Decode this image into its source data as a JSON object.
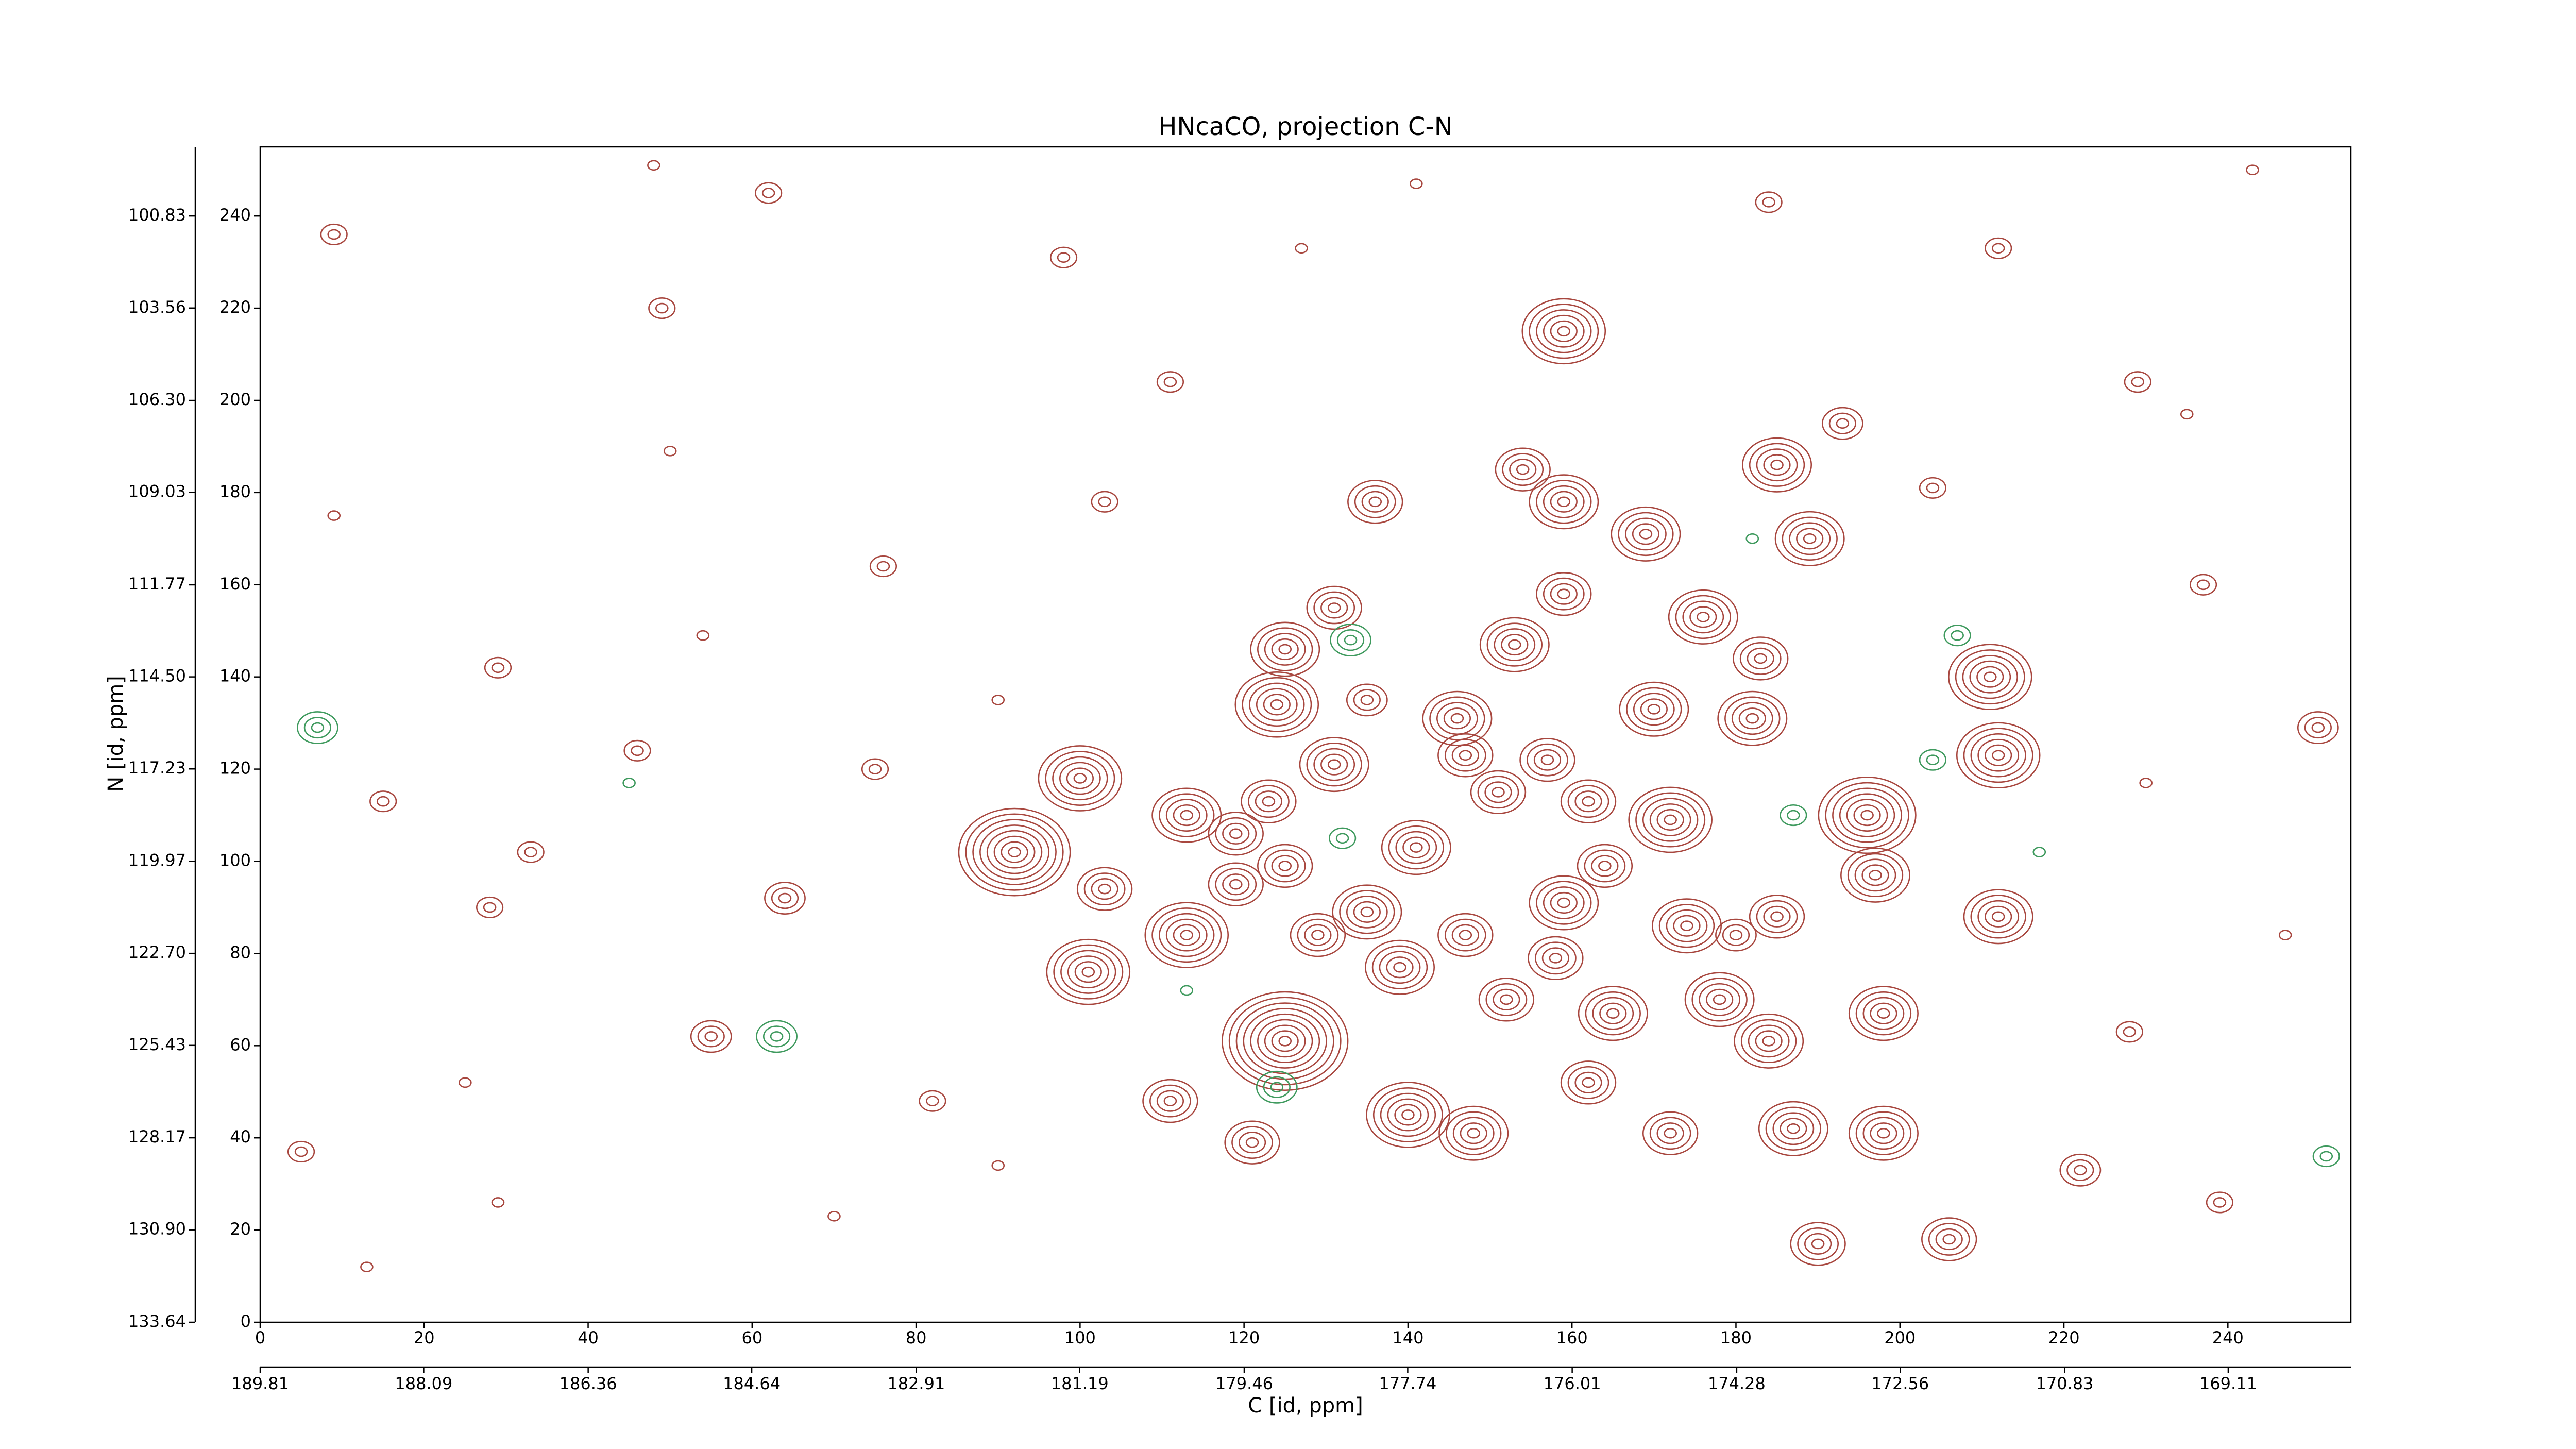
{
  "chart_data": {
    "type": "contour",
    "title": "HNcaCO, projection C-N",
    "xlabel": "C [id, ppm]",
    "ylabel": "N [id, ppm]",
    "xlim": [
      0,
      255
    ],
    "ylim": [
      0,
      255
    ],
    "xticks": [
      0,
      20,
      40,
      60,
      80,
      100,
      120,
      140,
      160,
      180,
      200,
      220,
      240
    ],
    "yticks": [
      0,
      20,
      40,
      60,
      80,
      100,
      120,
      140,
      160,
      180,
      200,
      220,
      240
    ],
    "x2lim": [
      189.81,
      167.82
    ],
    "x2ticks": [
      189.81,
      188.09,
      186.36,
      184.64,
      182.91,
      181.19,
      179.46,
      177.74,
      176.01,
      174.28,
      172.56,
      170.83,
      169.11
    ],
    "y2lim": [
      133.64,
      98.78
    ],
    "y2ticks": [
      133.64,
      {
        "value": 130.9,
        "label": "130.90"
      },
      128.17,
      125.43,
      {
        "value": 122.7,
        "label": "122.70"
      },
      119.97,
      117.23,
      {
        "value": 114.5,
        "label": "114.50"
      },
      111.77,
      109.03,
      {
        "value": 106.3,
        "label": "106.30"
      },
      103.56,
      100.83
    ],
    "peaks": [
      {
        "color": "#a8473f",
        "x": [
          92,
          100,
          101,
          103,
          113,
          113,
          125,
          124,
          125,
          131,
          131,
          136,
          135,
          139,
          140,
          141,
          146,
          148,
          153,
          154,
          159,
          159,
          159,
          159,
          165,
          169,
          170,
          172,
          176,
          182,
          183,
          184,
          185,
          187,
          189,
          190,
          196,
          197,
          198,
          198,
          206,
          211,
          212,
          212,
          222,
          251,
          193,
          178,
          174,
          185,
          172,
          162,
          152,
          147,
          151,
          157,
          162,
          164,
          158,
          129,
          125,
          119,
          119,
          123,
          111,
          121,
          147,
          135,
          180,
          5,
          62,
          49,
          28,
          64,
          75,
          55,
          237,
          229,
          243,
          235,
          204,
          98,
          48,
          9,
          29,
          15,
          33,
          82,
          90,
          29,
          13,
          70,
          76,
          50,
          111,
          127,
          141,
          212,
          184,
          228,
          239,
          247,
          230,
          25,
          46,
          54,
          90,
          103,
          9
        ],
        "y": [
          102,
          118,
          76,
          94,
          84,
          110,
          61,
          134,
          146,
          121,
          155,
          178,
          89,
          77,
          45,
          103,
          131,
          41,
          147,
          185,
          215,
          178,
          158,
          91,
          67,
          171,
          133,
          109,
          153,
          131,
          144,
          61,
          186,
          42,
          170,
          17,
          110,
          97,
          67,
          41,
          18,
          140,
          123,
          88,
          33,
          129,
          195,
          70,
          86,
          88,
          41,
          52,
          70,
          84,
          115,
          122,
          113,
          99,
          79,
          84,
          99,
          106,
          95,
          113,
          48,
          39,
          123,
          135,
          84,
          37,
          245,
          220,
          90,
          92,
          120,
          62,
          160,
          204,
          250,
          197,
          181,
          231,
          251,
          236,
          142,
          113,
          102,
          48,
          34,
          26,
          12,
          23,
          164,
          189,
          204,
          233,
          247,
          233,
          243,
          63,
          26,
          84,
          117,
          52,
          124,
          149,
          135,
          178,
          175
        ],
        "levels": [
          8,
          6,
          6,
          4,
          6,
          5,
          9,
          6,
          5,
          5,
          4,
          4,
          5,
          5,
          6,
          5,
          5,
          5,
          5,
          4,
          6,
          5,
          4,
          5,
          5,
          5,
          5,
          6,
          5,
          5,
          4,
          5,
          5,
          5,
          5,
          4,
          7,
          5,
          5,
          5,
          4,
          6,
          6,
          5,
          3,
          3,
          3,
          5,
          5,
          4,
          4,
          4,
          4,
          4,
          4,
          4,
          4,
          4,
          4,
          4,
          4,
          4,
          4,
          4,
          4,
          4,
          4,
          3,
          3,
          2,
          2,
          2,
          2,
          3,
          2,
          3,
          2,
          2,
          1,
          1,
          2,
          2,
          1,
          2,
          2,
          2,
          2,
          2,
          1,
          1,
          1,
          1,
          2,
          1,
          2,
          1,
          1,
          2,
          2,
          2,
          2,
          1,
          1,
          1,
          2,
          1,
          1,
          2,
          1
        ]
      },
      {
        "color": "#3f9a5e",
        "x": [
          7,
          63,
          124,
          133,
          207,
          204,
          187,
          252,
          217,
          132,
          113,
          45,
          182
        ],
        "y": [
          129,
          62,
          51,
          148,
          149,
          122,
          110,
          36,
          102,
          105,
          72,
          117,
          170
        ],
        "levels": [
          3,
          3,
          3,
          3,
          2,
          2,
          2,
          2,
          1,
          2,
          1,
          1,
          1
        ]
      }
    ]
  }
}
